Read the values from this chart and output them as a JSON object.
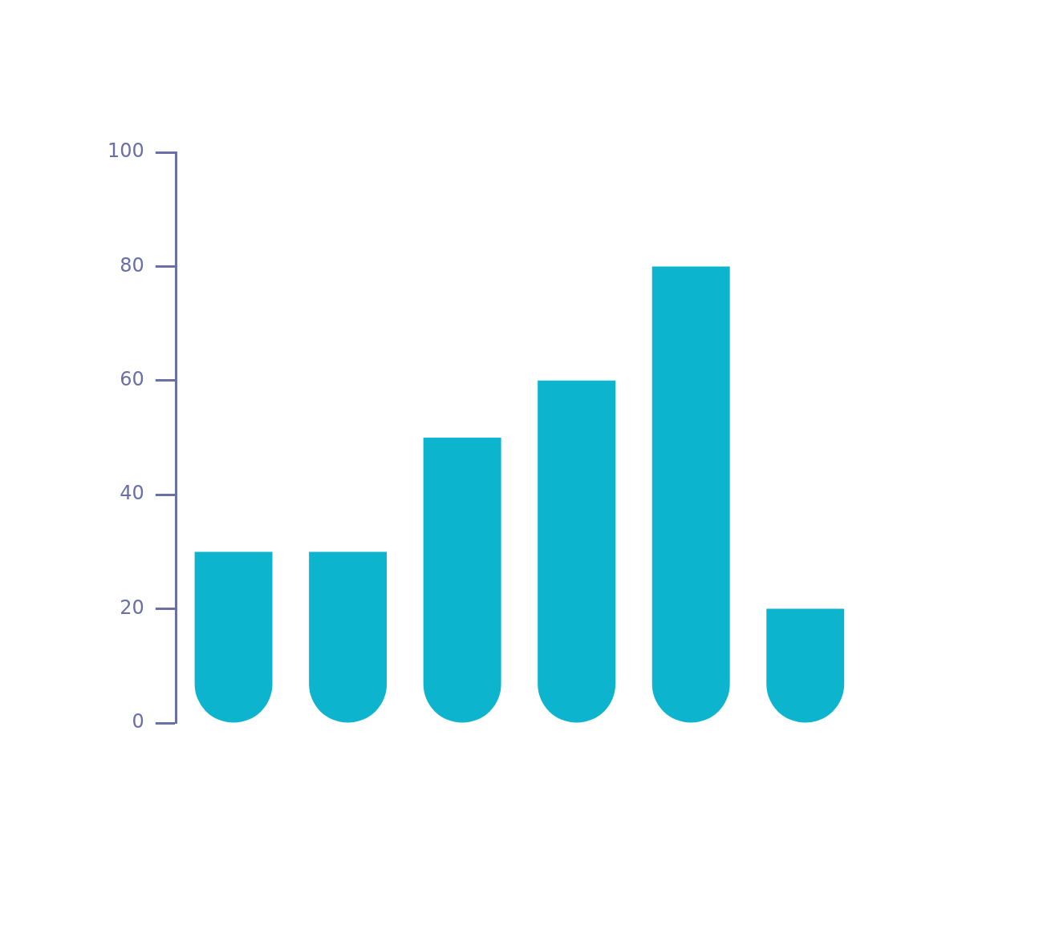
{
  "chart_data": {
    "type": "bar",
    "categories": [
      null,
      null,
      null,
      null,
      null,
      null
    ],
    "values": [
      30,
      30,
      50,
      60,
      80,
      20
    ],
    "color": "#0db4cd",
    "ylim": [
      0,
      100
    ],
    "yticks": [
      0,
      20,
      40,
      60,
      80,
      100
    ],
    "grid": false,
    "legend": false,
    "tick_labels": "y"
  }
}
